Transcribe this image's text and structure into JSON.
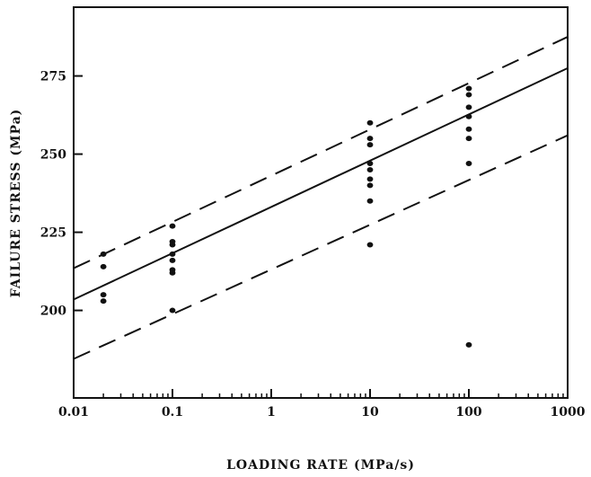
{
  "chart_data": {
    "type": "scatter",
    "xlabel": "LOADING RATE (MPa/s)",
    "ylabel": "FAILURE STRESS (MPa)",
    "x_scale": "log",
    "xlim": [
      0.01,
      1000
    ],
    "ylim": [
      172,
      297
    ],
    "x_ticks": [
      {
        "value": 0.01,
        "label": "0.01"
      },
      {
        "value": 0.1,
        "label": "0.1"
      },
      {
        "value": 1,
        "label": "1"
      },
      {
        "value": 10,
        "label": "10"
      },
      {
        "value": 100,
        "label": "100"
      },
      {
        "value": 1000,
        "label": "1000"
      }
    ],
    "y_ticks": [
      {
        "value": 200,
        "label": "200"
      },
      {
        "value": 225,
        "label": "225"
      },
      {
        "value": 250,
        "label": "250"
      },
      {
        "value": 275,
        "label": "275"
      }
    ],
    "grid": false,
    "points": [
      {
        "x": 0.02,
        "y": 218
      },
      {
        "x": 0.02,
        "y": 214
      },
      {
        "x": 0.02,
        "y": 205
      },
      {
        "x": 0.02,
        "y": 203
      },
      {
        "x": 0.1,
        "y": 227
      },
      {
        "x": 0.1,
        "y": 222
      },
      {
        "x": 0.1,
        "y": 221
      },
      {
        "x": 0.1,
        "y": 218
      },
      {
        "x": 0.1,
        "y": 216
      },
      {
        "x": 0.1,
        "y": 213
      },
      {
        "x": 0.1,
        "y": 212
      },
      {
        "x": 0.1,
        "y": 200
      },
      {
        "x": 10,
        "y": 260
      },
      {
        "x": 10,
        "y": 255
      },
      {
        "x": 10,
        "y": 253
      },
      {
        "x": 10,
        "y": 247
      },
      {
        "x": 10,
        "y": 245
      },
      {
        "x": 10,
        "y": 242
      },
      {
        "x": 10,
        "y": 240
      },
      {
        "x": 10,
        "y": 235
      },
      {
        "x": 10,
        "y": 221
      },
      {
        "x": 100,
        "y": 271
      },
      {
        "x": 100,
        "y": 269
      },
      {
        "x": 100,
        "y": 265
      },
      {
        "x": 100,
        "y": 262
      },
      {
        "x": 100,
        "y": 258
      },
      {
        "x": 100,
        "y": 255
      },
      {
        "x": 100,
        "y": 247
      },
      {
        "x": 100,
        "y": 189
      }
    ],
    "lines": [
      {
        "style": "solid",
        "x": [
          0.01,
          1000
        ],
        "y": [
          203.5,
          277.5
        ]
      },
      {
        "style": "dashed",
        "x": [
          0.01,
          1000
        ],
        "y": [
          213.5,
          287.5
        ]
      },
      {
        "style": "dashed",
        "x": [
          0.01,
          1000
        ],
        "y": [
          184.5,
          256
        ]
      }
    ],
    "colors": {
      "ink": "#111111",
      "background": "#ffffff"
    }
  }
}
